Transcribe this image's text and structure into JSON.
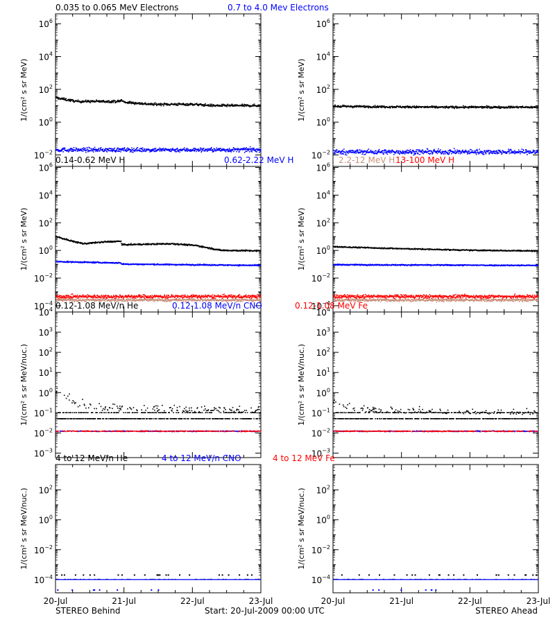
{
  "figure": {
    "footer_left": "STEREO Behind",
    "footer_center": "Start: 20-Jul-2009 00:00 UTC",
    "footer_right": "STEREO Ahead"
  },
  "chart_data": [
    {
      "type": "scatter",
      "row": 0,
      "spacecraft": "STEREO Behind",
      "ylabel": "1/(cm² s sr MeV)",
      "yscale": "log",
      "ylim": [
        0.002,
        4000000
      ],
      "xlim": [
        0,
        3
      ],
      "ytick_exponents": [
        -2,
        0,
        2,
        4,
        6
      ],
      "x": [
        "20-Jul",
        "21-Jul",
        "22-Jul",
        "23-Jul"
      ],
      "series": [
        {
          "name": "0.035 to 0.065 MeV Electrons",
          "color": "#000000",
          "knots": [
            [
              0,
              30
            ],
            [
              0.3,
              18
            ],
            [
              0.93,
              18
            ],
            [
              0.95,
              22
            ],
            [
              1.0,
              16
            ],
            [
              1.4,
              12
            ],
            [
              2.0,
              12
            ],
            [
              2.3,
              10
            ],
            [
              3,
              10
            ]
          ],
          "scatter_dex": 0.07
        },
        {
          "name": "0.7 to 4.0 Mev Electrons",
          "color": "#0000ff",
          "knots": [
            [
              0,
              0.02
            ],
            [
              3,
              0.02
            ]
          ],
          "scatter_dex": 0.12
        }
      ]
    },
    {
      "type": "scatter",
      "row": 0,
      "spacecraft": "STEREO Ahead",
      "ylabel": "1/(cm² s sr MeV)",
      "yscale": "log",
      "ylim": [
        0.002,
        4000000
      ],
      "xlim": [
        0,
        3
      ],
      "ytick_exponents": [
        -2,
        0,
        2,
        4,
        6
      ],
      "x": [
        "20-Jul",
        "21-Jul",
        "22-Jul",
        "23-Jul"
      ],
      "series": [
        {
          "name": "0.035 to 0.065 MeV Electrons",
          "color": "#000000",
          "knots": [
            [
              0,
              9
            ],
            [
              1.5,
              8
            ],
            [
              3,
              8
            ]
          ],
          "scatter_dex": 0.06
        },
        {
          "name": "0.7 to 4.0 Mev Electrons",
          "color": "#0000ff",
          "knots": [
            [
              0,
              0.015
            ],
            [
              3,
              0.015
            ]
          ],
          "scatter_dex": 0.14
        }
      ]
    },
    {
      "type": "scatter",
      "row": 1,
      "spacecraft": "STEREO Behind",
      "ylabel": "1/(cm² s sr MeV)",
      "yscale": "log",
      "ylim": [
        3.5e-05,
        1200000
      ],
      "xlim": [
        0,
        3
      ],
      "ytick_exponents": [
        -4,
        -2,
        0,
        2,
        4,
        6
      ],
      "x": [
        "20-Jul",
        "21-Jul",
        "22-Jul",
        "23-Jul"
      ],
      "series": [
        {
          "name": "0.14-0.62 MeV H",
          "color": "#000000",
          "knots": [
            [
              0,
              10
            ],
            [
              0.2,
              5
            ],
            [
              0.4,
              3
            ],
            [
              0.7,
              4
            ],
            [
              0.95,
              4.5
            ],
            [
              0.96,
              2.5
            ],
            [
              1.7,
              3
            ],
            [
              2.05,
              2.2
            ],
            [
              2.4,
              1
            ],
            [
              3,
              0.9
            ]
          ],
          "scatter_dex": 0.05
        },
        {
          "name": "0.62-2.22 MeV H",
          "color": "#0000ff",
          "knots": [
            [
              0,
              0.15
            ],
            [
              0.95,
              0.12
            ],
            [
              0.96,
              0.1
            ],
            [
              3,
              0.08
            ]
          ],
          "scatter_dex": 0.04
        },
        {
          "name": "2.2-12 MeV H",
          "color": "#c8907a",
          "knots": [
            [
              0,
              0.00025
            ],
            [
              3,
              0.00025
            ]
          ],
          "scatter_dex": 0.1
        },
        {
          "name": "13-100 MeV H",
          "color": "#ff0000",
          "knots": [
            [
              0,
              0.00045
            ],
            [
              3,
              0.00045
            ]
          ],
          "scatter_dex": 0.12
        }
      ]
    },
    {
      "type": "scatter",
      "row": 1,
      "spacecraft": "STEREO Ahead",
      "ylabel": "1/(cm² s sr MeV)",
      "yscale": "log",
      "ylim": [
        3.5e-05,
        1200000
      ],
      "xlim": [
        0,
        3
      ],
      "ytick_exponents": [
        -4,
        -2,
        0,
        2,
        4,
        6
      ],
      "x": [
        "20-Jul",
        "21-Jul",
        "22-Jul",
        "23-Jul"
      ],
      "series": [
        {
          "name": "0.14-0.62 MeV H",
          "color": "#000000",
          "knots": [
            [
              0,
              1.8
            ],
            [
              1.0,
              1.3
            ],
            [
              2.0,
              1.0
            ],
            [
              3,
              0.9
            ]
          ],
          "scatter_dex": 0.04
        },
        {
          "name": "0.62-2.22 MeV H",
          "color": "#0000ff",
          "knots": [
            [
              0,
              0.09
            ],
            [
              3,
              0.08
            ]
          ],
          "scatter_dex": 0.04
        },
        {
          "name": "2.2-12 MeV H",
          "color": "#c8907a",
          "knots": [
            [
              0,
              0.00025
            ],
            [
              3,
              0.00025
            ]
          ],
          "scatter_dex": 0.1
        },
        {
          "name": "13-100 MeV H",
          "color": "#ff0000",
          "knots": [
            [
              0,
              0.00045
            ],
            [
              3,
              0.00045
            ]
          ],
          "scatter_dex": 0.12
        }
      ]
    },
    {
      "type": "scatter",
      "row": 2,
      "spacecraft": "STEREO Behind",
      "ylabel": "1/(cm² s sr MeV/nuc.)",
      "yscale": "log",
      "ylim": [
        0.0006,
        10000
      ],
      "xlim": [
        0,
        3
      ],
      "ytick_exponents": [
        -3,
        -2,
        -1,
        0,
        1,
        2,
        3,
        4
      ],
      "x": [
        "20-Jul",
        "21-Jul",
        "22-Jul",
        "23-Jul"
      ],
      "series": [
        {
          "name": "0.12-1.08 MeV/n He",
          "color": "#000000",
          "knots": [
            [
              0,
              0.9
            ],
            [
              0.15,
              0.5
            ],
            [
              0.3,
              0.2
            ],
            [
              0.6,
              0.13
            ],
            [
              1.5,
              0.11
            ],
            [
              3,
              0.1
            ]
          ],
          "floor_levels": [
            0.05,
            0.1
          ],
          "scatter_dex": 0.35
        },
        {
          "name": "0.12-1.08 MeV/n CNO",
          "color": "#0000ff",
          "knots": [
            [
              0,
              0.012
            ],
            [
              3,
              0.012
            ]
          ],
          "scatter_dex": 0.02
        },
        {
          "name": "0.12-1.08 MeV Fe",
          "color": "#ff0000",
          "knots": [
            [
              0,
              0.012
            ],
            [
              3,
              0.012
            ]
          ],
          "scatter_dex": 0.02
        }
      ]
    },
    {
      "type": "scatter",
      "row": 2,
      "spacecraft": "STEREO Ahead",
      "ylabel": "1/(cm² s sr MeV/nuc.)",
      "yscale": "log",
      "ylim": [
        0.0006,
        10000
      ],
      "xlim": [
        0,
        3
      ],
      "ytick_exponents": [
        -3,
        -2,
        -1,
        0,
        1,
        2,
        3,
        4
      ],
      "x": [
        "20-Jul",
        "21-Jul",
        "22-Jul",
        "23-Jul"
      ],
      "series": [
        {
          "name": "0.12-1.08 MeV/n He",
          "color": "#000000",
          "knots": [
            [
              0,
              0.3
            ],
            [
              0.2,
              0.15
            ],
            [
              0.5,
              0.1
            ],
            [
              3,
              0.08
            ]
          ],
          "floor_levels": [
            0.05,
            0.1
          ],
          "scatter_dex": 0.25
        },
        {
          "name": "0.12-1.08 MeV/n CNO",
          "color": "#0000ff",
          "knots": [
            [
              0,
              0.012
            ],
            [
              3,
              0.012
            ]
          ],
          "scatter_dex": 0.02
        },
        {
          "name": "0.12-1.08 MeV Fe",
          "color": "#ff0000",
          "knots": [
            [
              0,
              0.012
            ],
            [
              3,
              0.012
            ]
          ],
          "scatter_dex": 0.02
        }
      ]
    },
    {
      "type": "scatter",
      "row": 3,
      "spacecraft": "STEREO Behind",
      "ylabel": "1/(cm² s sr MeV/nuc.)",
      "yscale": "log",
      "ylim": [
        1.3e-05,
        5000
      ],
      "xlim": [
        0,
        3
      ],
      "ytick_exponents": [
        -4,
        -2,
        0,
        2
      ],
      "x": [
        "20-Jul",
        "21-Jul",
        "22-Jul",
        "23-Jul"
      ],
      "series": [
        {
          "name": "4 to 12 MeV/n He",
          "color": "#000000",
          "knots": [
            [
              0,
              0.0001
            ],
            [
              3,
              0.0001
            ]
          ],
          "sparse_level": 0.0002,
          "scatter_dex": 0
        },
        {
          "name": "4 to 12 MeV/n CNO",
          "color": "#0000ff",
          "knots": [
            [
              0,
              0.0001
            ],
            [
              3,
              0.0001
            ]
          ],
          "scatter_dex": 0
        },
        {
          "name": "4 to 12 MeV Fe",
          "color": "#ff0000",
          "knots": [
            [
              0,
              2e-05
            ],
            [
              3,
              2e-05
            ]
          ],
          "scatter_dex": 0
        }
      ]
    },
    {
      "type": "scatter",
      "row": 3,
      "spacecraft": "STEREO Ahead",
      "ylabel": "1/(cm² s sr MeV/nuc.)",
      "yscale": "log",
      "ylim": [
        1.3e-05,
        5000
      ],
      "xlim": [
        0,
        3
      ],
      "ytick_exponents": [
        -4,
        -2,
        0,
        2
      ],
      "x": [
        "20-Jul",
        "21-Jul",
        "22-Jul",
        "23-Jul"
      ],
      "series": [
        {
          "name": "4 to 12 MeV/n He",
          "color": "#000000",
          "knots": [
            [
              0,
              0.0001
            ],
            [
              3,
              0.0001
            ]
          ],
          "sparse_level": 0.0002,
          "scatter_dex": 0
        },
        {
          "name": "4 to 12 MeV/n CNO",
          "color": "#0000ff",
          "knots": [
            [
              0,
              0.0001
            ],
            [
              3,
              0.0001
            ]
          ],
          "scatter_dex": 0
        },
        {
          "name": "4 to 12 MeV Fe",
          "color": "#ff0000",
          "knots": [
            [
              0,
              2e-05
            ],
            [
              3,
              2e-05
            ]
          ],
          "scatter_dex": 0
        }
      ]
    }
  ]
}
